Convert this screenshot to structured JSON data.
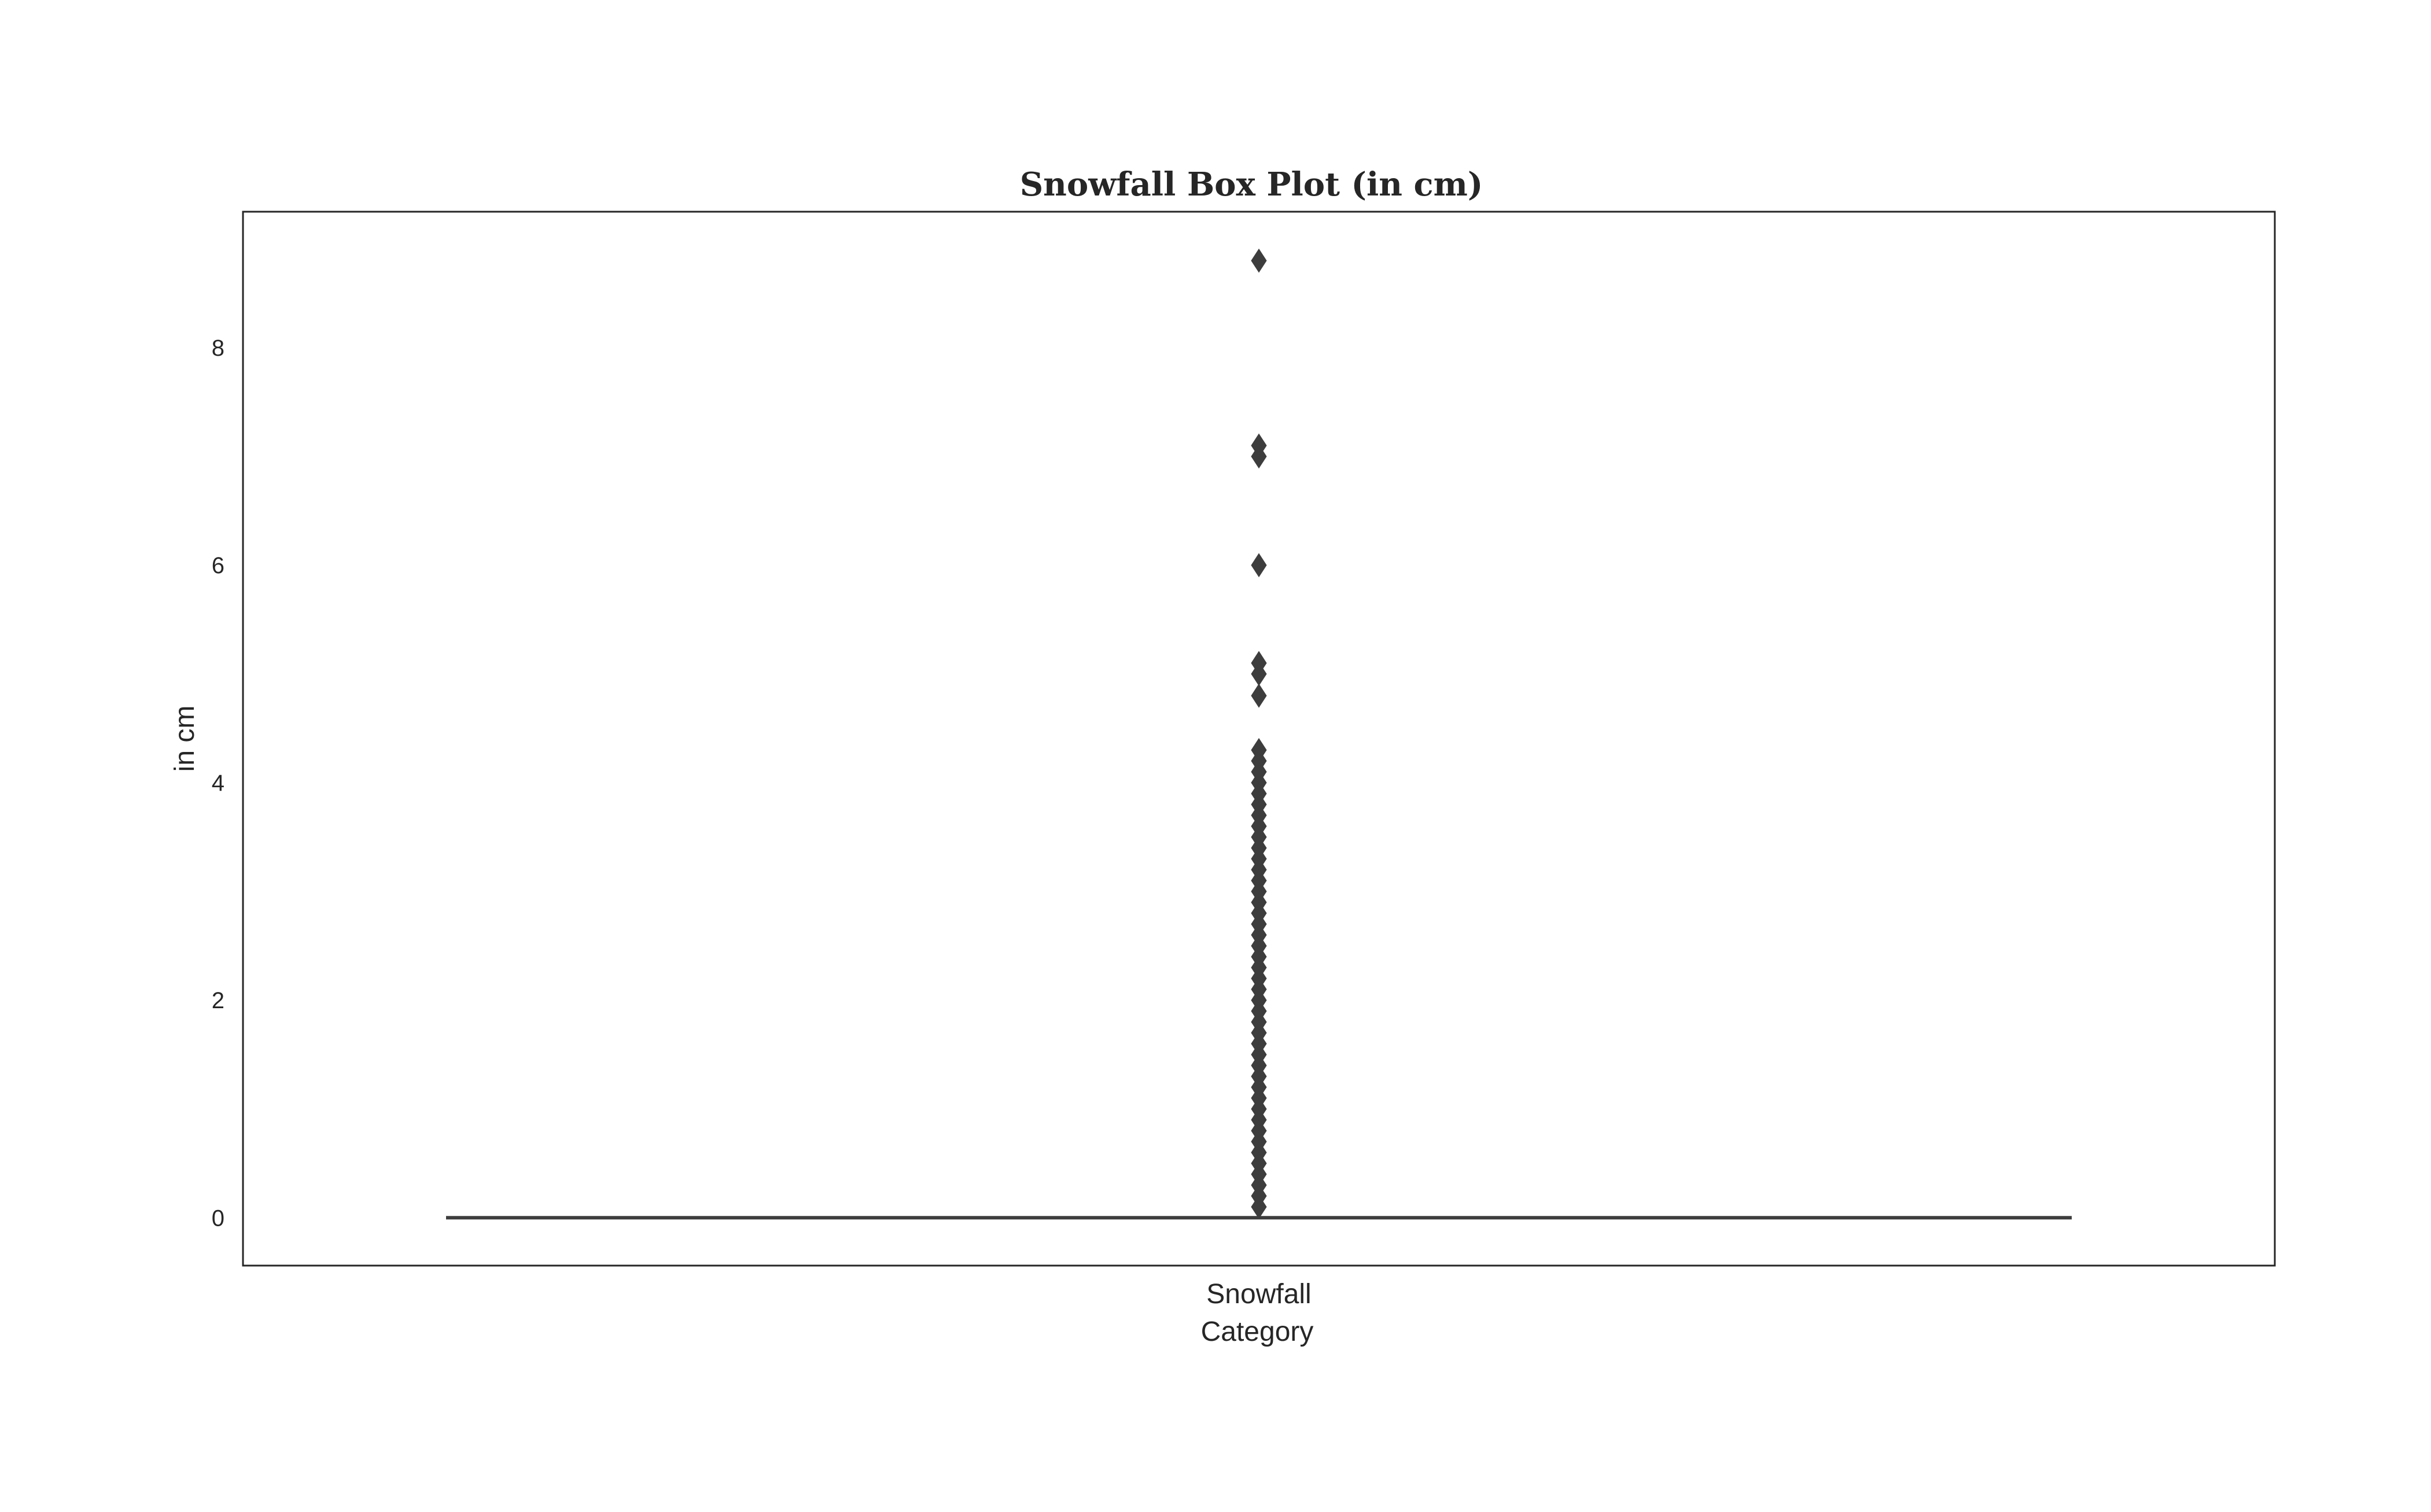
{
  "chart_data": {
    "type": "box",
    "title": "Snowfall Box Plot (in cm)",
    "xlabel": "Category",
    "ylabel": "in cm",
    "categories": [
      "Snowfall"
    ],
    "ylim": [
      -0.44,
      9.25
    ],
    "yticks": [
      0,
      2,
      4,
      6,
      8
    ],
    "grid": false,
    "box": {
      "q1": 0,
      "median": 0,
      "q3": 0,
      "whisker_low": 0,
      "whisker_high": 0
    },
    "outliers": [
      0.1,
      0.2,
      0.3,
      0.4,
      0.5,
      0.6,
      0.7,
      0.8,
      0.9,
      1.0,
      1.1,
      1.2,
      1.3,
      1.4,
      1.5,
      1.6,
      1.7,
      1.8,
      1.9,
      2.0,
      2.1,
      2.2,
      2.3,
      2.4,
      2.5,
      2.6,
      2.7,
      2.8,
      2.9,
      3.0,
      3.1,
      3.2,
      3.3,
      3.4,
      3.5,
      3.6,
      3.7,
      3.8,
      3.9,
      4.0,
      4.1,
      4.2,
      4.3,
      4.8,
      5.0,
      5.1,
      6.0,
      7.0,
      7.1,
      8.8
    ],
    "colors": {
      "marks": "#3d3d3d",
      "frame": "#262626",
      "text": "#262626"
    }
  }
}
